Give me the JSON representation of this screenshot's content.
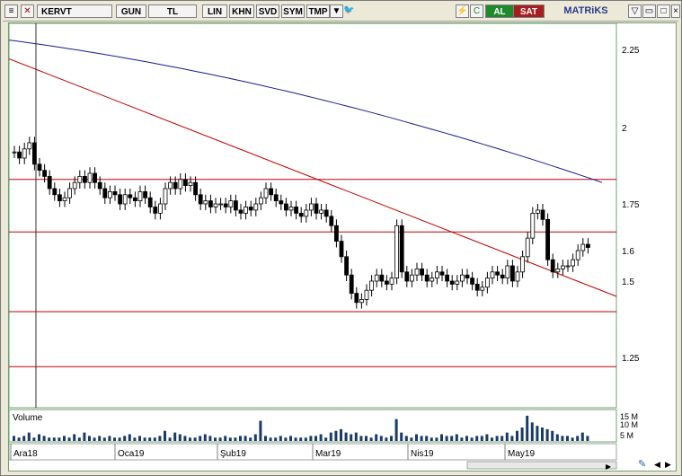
{
  "toolbar": {
    "symbol": "KERVT",
    "period": "GUN",
    "currency": "TL",
    "scale_lin": "LIN",
    "khn": "KHN",
    "svd": "SVD",
    "sym": "SYM",
    "tmp": "TMP",
    "buy": "AL",
    "sell": "SAT",
    "brand": "MATRiKS",
    "colors": {
      "buy": "#1f8a2c",
      "sell": "#a81d1d",
      "brand": "#2a3a8a"
    }
  },
  "chart_data": {
    "type": "candlestick",
    "y_ticks": [
      "2.25",
      "2",
      "1.75",
      "1.6",
      "1.5",
      "1.25"
    ],
    "y_tick_values": [
      2.25,
      2.0,
      1.75,
      1.6,
      1.5,
      1.25
    ],
    "x_ticks": [
      "Ara18",
      "Oca19",
      "Şub19",
      "Mar19",
      "Nis19",
      "May19"
    ],
    "volume_label": "Volume",
    "volume_ticks": [
      "15 M",
      "10 M",
      "5 M"
    ],
    "horizontal_levels": [
      1.83,
      1.66,
      1.4,
      1.22
    ],
    "trendline": {
      "from": {
        "date": "Ara18",
        "value": 2.22
      },
      "to": {
        "date": "end",
        "value": 1.45
      }
    },
    "moving_average": {
      "start": 2.28,
      "end": 1.82
    },
    "colors": {
      "candle": "#000000",
      "levels": "#c00000",
      "ma": "#1a1a8c",
      "volume": "#1a3a6a",
      "grid": "#c8c8c8"
    },
    "closes": [
      1.92,
      1.9,
      1.93,
      1.95,
      1.88,
      1.86,
      1.84,
      1.8,
      1.78,
      1.76,
      1.77,
      1.8,
      1.82,
      1.84,
      1.82,
      1.85,
      1.82,
      1.8,
      1.77,
      1.79,
      1.78,
      1.75,
      1.78,
      1.77,
      1.76,
      1.79,
      1.77,
      1.74,
      1.72,
      1.75,
      1.8,
      1.82,
      1.8,
      1.83,
      1.81,
      1.82,
      1.78,
      1.75,
      1.76,
      1.74,
      1.75,
      1.75,
      1.74,
      1.76,
      1.73,
      1.72,
      1.74,
      1.73,
      1.75,
      1.77,
      1.8,
      1.78,
      1.76,
      1.75,
      1.73,
      1.74,
      1.72,
      1.71,
      1.73,
      1.75,
      1.72,
      1.73,
      1.71,
      1.68,
      1.63,
      1.58,
      1.52,
      1.46,
      1.43,
      1.44,
      1.47,
      1.5,
      1.52,
      1.5,
      1.49,
      1.51,
      1.68,
      1.53,
      1.5,
      1.52,
      1.54,
      1.52,
      1.5,
      1.51,
      1.53,
      1.52,
      1.5,
      1.49,
      1.5,
      1.52,
      1.51,
      1.49,
      1.47,
      1.48,
      1.51,
      1.53,
      1.52,
      1.51,
      1.55,
      1.5,
      1.53,
      1.58,
      1.64,
      1.72,
      1.73,
      1.7,
      1.57,
      1.53,
      1.54,
      1.55,
      1.55,
      1.57,
      1.6,
      1.62,
      1.61
    ],
    "volumes": [
      3,
      2,
      3,
      5,
      2,
      4,
      3,
      2,
      2,
      2,
      3,
      2,
      4,
      2,
      5,
      3,
      2,
      3,
      2,
      3,
      2,
      2,
      3,
      4,
      2,
      3,
      2,
      2,
      2,
      3,
      6,
      2,
      5,
      4,
      3,
      2,
      2,
      3,
      4,
      3,
      2,
      2,
      3,
      2,
      2,
      3,
      3,
      2,
      4,
      12,
      3,
      2,
      2,
      3,
      2,
      3,
      2,
      2,
      2,
      3,
      3,
      4,
      2,
      5,
      6,
      7,
      5,
      4,
      5,
      3,
      3,
      2,
      4,
      3,
      2,
      3,
      13,
      5,
      3,
      2,
      4,
      3,
      3,
      2,
      2,
      4,
      3,
      3,
      4,
      2,
      3,
      2,
      3,
      3,
      4,
      2,
      3,
      3,
      5,
      3,
      6,
      8,
      15,
      11,
      9,
      8,
      7,
      6,
      4,
      3,
      3,
      2,
      3,
      5,
      3
    ]
  }
}
